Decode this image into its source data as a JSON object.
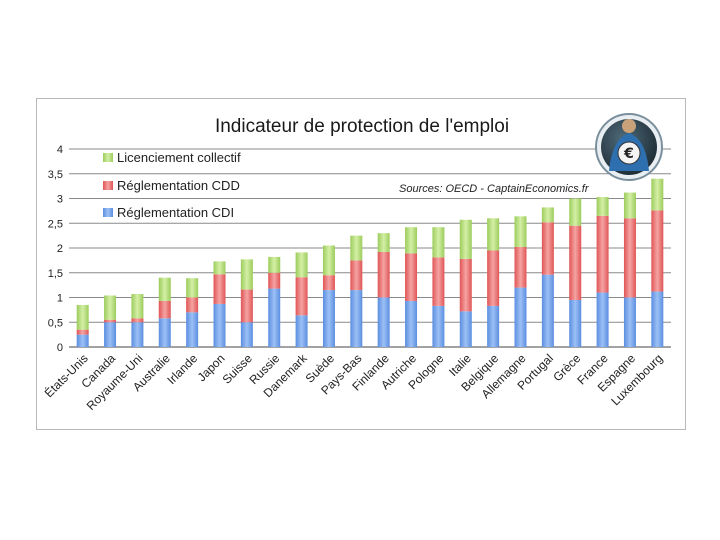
{
  "chart_data": {
    "type": "bar",
    "stacked": true,
    "title": "Indicateur de protection de l'emploi",
    "source": "Sources: OECD - CaptainEconomics.fr",
    "xlabel": "",
    "ylabel": "",
    "ylim": [
      0,
      4
    ],
    "yticks": [
      "0",
      "0,5",
      "1",
      "1,5",
      "2",
      "2,5",
      "3",
      "3,5",
      "4"
    ],
    "ytick_values": [
      0,
      0.5,
      1,
      1.5,
      2,
      2.5,
      3,
      3.5,
      4
    ],
    "grid": true,
    "legend_position": "top-left",
    "logo_glyph": "€",
    "categories": [
      "États-Unis",
      "Canada",
      "Royaume-Uni",
      "Australie",
      "Irlande",
      "Japon",
      "Suisse",
      "Russie",
      "Danemark",
      "Suède",
      "Pays-Bas",
      "Finlande",
      "Autriche",
      "Pologne",
      "Italie",
      "Belgique",
      "Allemagne",
      "Portugal",
      "Grèce",
      "France",
      "Espagne",
      "Luxembourg"
    ],
    "series": [
      {
        "name": "Réglementation CDI",
        "color": "#6f9de8",
        "values": [
          0.25,
          0.5,
          0.5,
          0.58,
          0.7,
          0.87,
          0.5,
          1.18,
          0.64,
          1.15,
          1.15,
          1.0,
          0.93,
          0.83,
          0.72,
          0.83,
          1.2,
          1.46,
          0.95,
          1.1,
          1.0,
          1.12
        ]
      },
      {
        "name": "Réglementation CDD",
        "color": "#e86a6a",
        "values": [
          0.1,
          0.05,
          0.08,
          0.35,
          0.3,
          0.6,
          0.66,
          0.32,
          0.77,
          0.3,
          0.6,
          0.92,
          0.96,
          0.98,
          1.06,
          1.12,
          0.82,
          1.06,
          1.5,
          1.55,
          1.6,
          1.64
        ]
      },
      {
        "name": "Licenciement collectif",
        "color": "#a9d46a",
        "values": [
          0.5,
          0.49,
          0.49,
          0.47,
          0.39,
          0.26,
          0.61,
          0.32,
          0.5,
          0.6,
          0.5,
          0.38,
          0.53,
          0.61,
          0.79,
          0.65,
          0.62,
          0.3,
          0.55,
          0.38,
          0.52,
          0.64
        ]
      }
    ]
  }
}
